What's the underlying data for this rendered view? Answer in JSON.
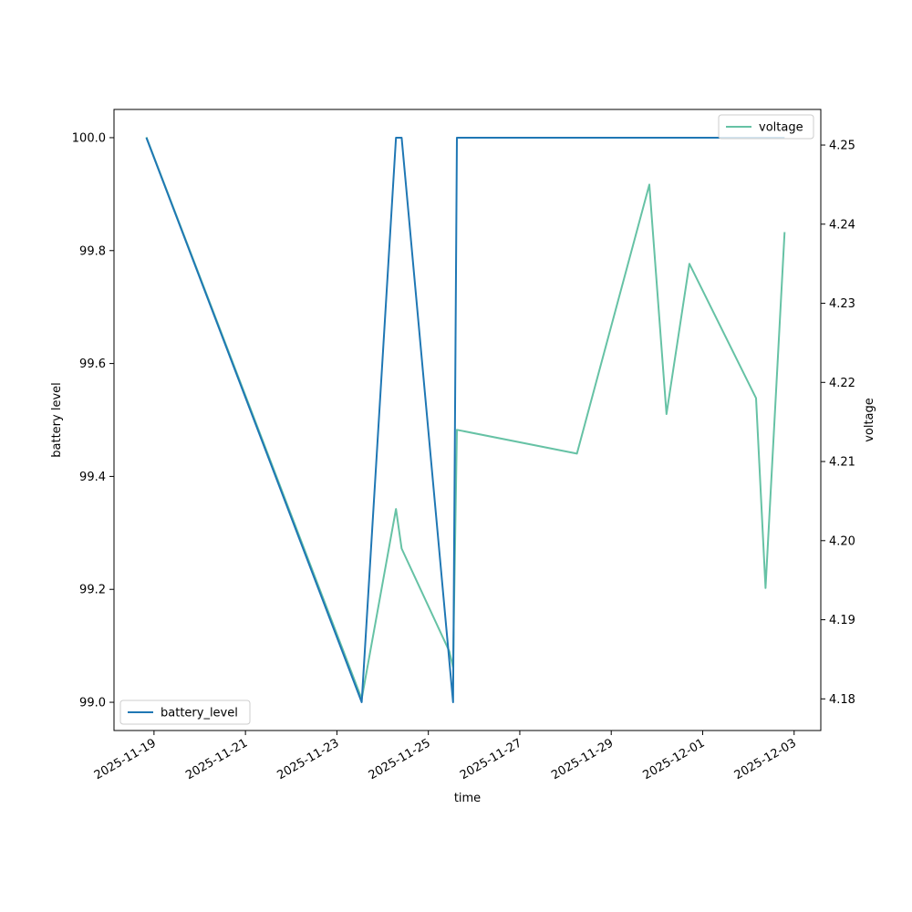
{
  "chart_data": {
    "type": "line",
    "xlabel": "time",
    "ylabel": "battery level",
    "y2label": "voltage",
    "grid": false,
    "x_ticks": [
      "2025-11-19",
      "2025-11-21",
      "2025-11-23",
      "2025-11-25",
      "2025-11-27",
      "2025-11-29",
      "2025-12-01",
      "2025-12-03"
    ],
    "y_ticks": [
      "99.0",
      "99.2",
      "99.4",
      "99.6",
      "99.8",
      "100.0"
    ],
    "y2_ticks": [
      "4.18",
      "4.19",
      "4.20",
      "4.21",
      "4.22",
      "4.23",
      "4.24",
      "4.25"
    ],
    "xlim": [
      "2025-11-18T03:00",
      "2025-12-03T14:00"
    ],
    "ylim": [
      98.95,
      100.05
    ],
    "y2lim": [
      4.176,
      4.2545
    ],
    "series": [
      {
        "name": "battery_level",
        "axis": "left",
        "color": "#1f77b4",
        "legend_position": "lower-left",
        "points": [
          [
            "2025-11-18T20:00",
            100.0
          ],
          [
            "2025-11-23T13:00",
            99.0
          ],
          [
            "2025-11-24T07:00",
            100.0
          ],
          [
            "2025-11-24T10:00",
            100.0
          ],
          [
            "2025-11-25T13:00",
            99.0
          ],
          [
            "2025-11-25T15:00",
            100.0
          ],
          [
            "2025-12-02T19:00",
            100.0
          ]
        ]
      },
      {
        "name": "voltage",
        "axis": "right",
        "color": "#66c2a5",
        "legend_position": "upper-right",
        "points": [
          [
            "2025-11-18T20:00",
            4.251
          ],
          [
            "2025-11-23T13:00",
            4.18
          ],
          [
            "2025-11-24T07:00",
            4.204
          ],
          [
            "2025-11-24T10:00",
            4.199
          ],
          [
            "2025-11-25T11:00",
            4.186
          ],
          [
            "2025-11-25T13:00",
            4.184
          ],
          [
            "2025-11-25T15:00",
            4.214
          ],
          [
            "2025-11-28T06:00",
            4.211
          ],
          [
            "2025-11-29T20:00",
            4.245
          ],
          [
            "2025-11-30T05:00",
            4.216
          ],
          [
            "2025-11-30T17:00",
            4.235
          ],
          [
            "2025-12-02T04:00",
            4.218
          ],
          [
            "2025-12-02T09:00",
            4.194
          ],
          [
            "2025-12-02T19:00",
            4.239
          ]
        ]
      }
    ]
  }
}
